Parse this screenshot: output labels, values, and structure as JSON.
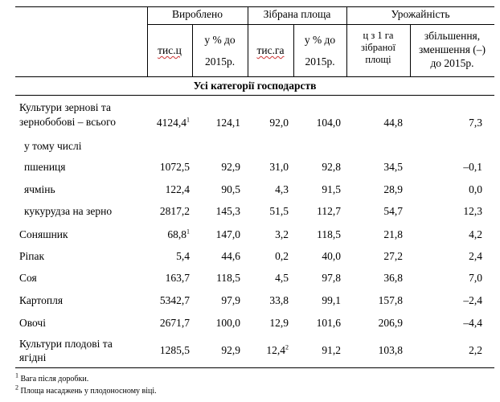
{
  "header": {
    "produced": "Вироблено",
    "harvested_area": "Зібрана площа",
    "yield": "Урожайність",
    "units_prod_1": "тис.ц",
    "units_prod_2": "у % до",
    "units_prod_3": "2015р.",
    "units_area_1": "тис.га",
    "units_area_2": "у % до",
    "units_area_3": "2015р.",
    "yield_per_ha_1": "ц з 1 га",
    "yield_per_ha_2": "зібраної",
    "yield_per_ha_3": "площі",
    "yield_change_1": "збільшення,",
    "yield_change_2": "зменшення (–)",
    "yield_change_3": "до 2015р."
  },
  "section_title": "Усі категорії господарств",
  "rows": [
    {
      "label": "Культури зернові та",
      "label2": "зернобобові – всього",
      "prod": "4124,4",
      "prod_sup": "1",
      "prod_pct": "124,1",
      "area": "92,0",
      "area_sup": "",
      "area_pct": "104,0",
      "yield": "44,8",
      "change": "7,3"
    },
    {
      "label": "у тому числі"
    },
    {
      "label": "пшениця",
      "prod": "1072,5",
      "prod_pct": "92,9",
      "area": "31,0",
      "area_pct": "92,8",
      "yield": "34,5",
      "change": "–0,1"
    },
    {
      "label": "ячмінь",
      "prod": "122,4",
      "prod_pct": "90,5",
      "area": "4,3",
      "area_pct": "91,5",
      "yield": "28,9",
      "change": "0,0"
    },
    {
      "label": "кукурудза на зерно",
      "prod": "2817,2",
      "prod_pct": "145,3",
      "area": "51,5",
      "area_pct": "112,7",
      "yield": "54,7",
      "change": "12,3"
    },
    {
      "label": "Соняшник",
      "prod": "68,8",
      "prod_sup": "1",
      "prod_pct": "147,0",
      "area": "3,2",
      "area_pct": "118,5",
      "yield": "21,8",
      "change": "4,2"
    },
    {
      "label": "Ріпак",
      "prod": "5,4",
      "prod_pct": "44,6",
      "area": "0,2",
      "area_pct": "40,0",
      "yield": "27,2",
      "change": "2,4"
    },
    {
      "label": "Соя",
      "prod": "163,7",
      "prod_pct": "118,5",
      "area": "4,5",
      "area_pct": "97,8",
      "yield": "36,8",
      "change": "7,0"
    },
    {
      "label": "Картопля",
      "prod": "5342,7",
      "prod_pct": "97,9",
      "area": "33,8",
      "area_pct": "99,1",
      "yield": "157,8",
      "change": "–2,4"
    },
    {
      "label": "Овочі",
      "prod": "2671,7",
      "prod_pct": "100,0",
      "area": "12,9",
      "area_pct": "101,6",
      "yield": "206,9",
      "change": "–4,4"
    },
    {
      "label": "Культури плодові та",
      "label2": "ягідні",
      "prod": "1285,5",
      "prod_pct": "92,9",
      "area": "12,4",
      "area_sup": "2",
      "area_pct": "91,2",
      "yield": "103,8",
      "change": "2,2"
    }
  ],
  "footnotes": [
    {
      "mark": "1",
      "text": "Вага після доробки."
    },
    {
      "mark": "2",
      "text": "Площа насаджень у плодоносному віці."
    }
  ]
}
